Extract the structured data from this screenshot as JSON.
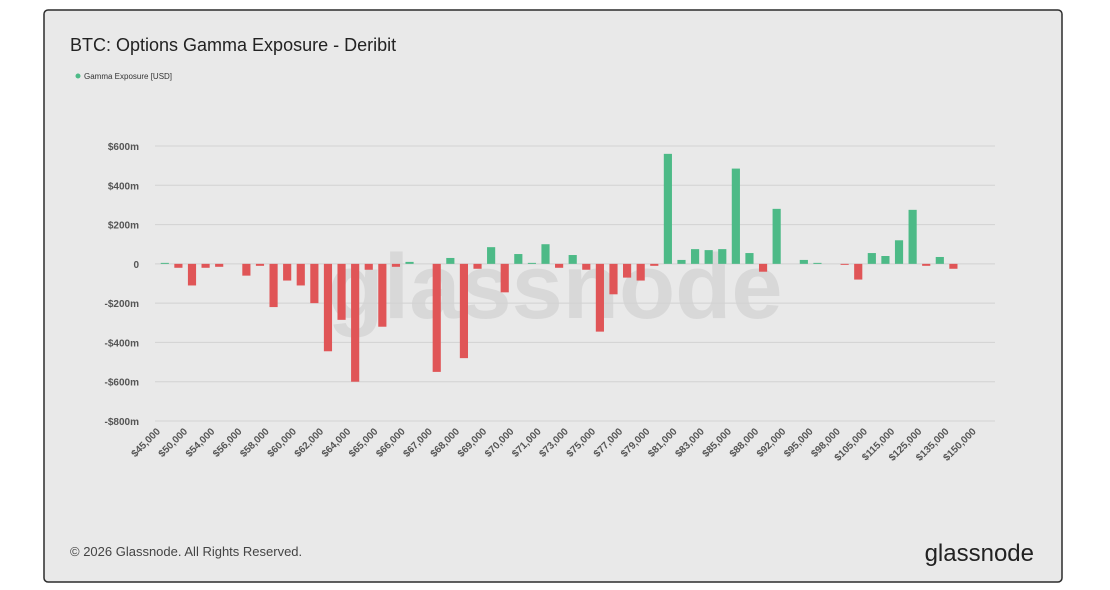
{
  "chart_data": {
    "type": "bar",
    "title": "BTC: Options Gamma Exposure - Deribit",
    "watermark": "glassnode",
    "footer": "© 2026 Glassnode. All Rights Reserved.",
    "logo": "glassnode",
    "categories": [
      "$45,000",
      null,
      "$50,000",
      null,
      "$54,000",
      null,
      "$56,000",
      null,
      "$58,000",
      null,
      "$60,000",
      null,
      "$62,000",
      null,
      "$64,000",
      null,
      "$65,000",
      null,
      "$66,000",
      null,
      "$67,000",
      null,
      "$68,000",
      null,
      "$69,000",
      null,
      "$70,000",
      null,
      "$71,000",
      null,
      "$73,000",
      null,
      "$75,000",
      null,
      "$77,000",
      null,
      "$79,000",
      null,
      "$81,000",
      null,
      "$83,000",
      null,
      "$85,000",
      null,
      "$88,000",
      null,
      "$92,000",
      null,
      "$95,000",
      null,
      "$98,000",
      null,
      "$105,000",
      null,
      "$115,000",
      null,
      "$125,000",
      null,
      "$135,000",
      null,
      "$150,000",
      null
    ],
    "series": [
      {
        "name": "Gamma Exposure [USD]",
        "color": "#4dba87",
        "negative_color": "#e05557",
        "values": [
          5,
          -20,
          -110,
          -20,
          -15,
          0,
          -60,
          -10,
          -220,
          -85,
          -110,
          -200,
          -445,
          -285,
          -600,
          -30,
          -320,
          -15,
          10,
          0,
          -550,
          30,
          -480,
          -25,
          85,
          -145,
          50,
          5,
          100,
          -20,
          45,
          -30,
          -345,
          -155,
          -70,
          -85,
          -10,
          560,
          20,
          75,
          70,
          75,
          485,
          55,
          -40,
          280,
          0,
          20,
          5,
          0,
          -5,
          -80,
          55,
          40,
          120,
          275,
          -10,
          35,
          -25,
          0,
          0,
          0
        ]
      }
    ],
    "ylim": [
      -800,
      600
    ],
    "yticks": [
      {
        "value": -800,
        "label": "-$800m"
      },
      {
        "value": -600,
        "label": "-$600m"
      },
      {
        "value": -400,
        "label": "-$400m"
      },
      {
        "value": -200,
        "label": "-$200m"
      },
      0,
      {
        "value": 200,
        "label": "$200m"
      },
      {
        "value": 400,
        "label": "$400m"
      },
      {
        "value": 600,
        "label": "$600m"
      }
    ],
    "grid": true
  }
}
